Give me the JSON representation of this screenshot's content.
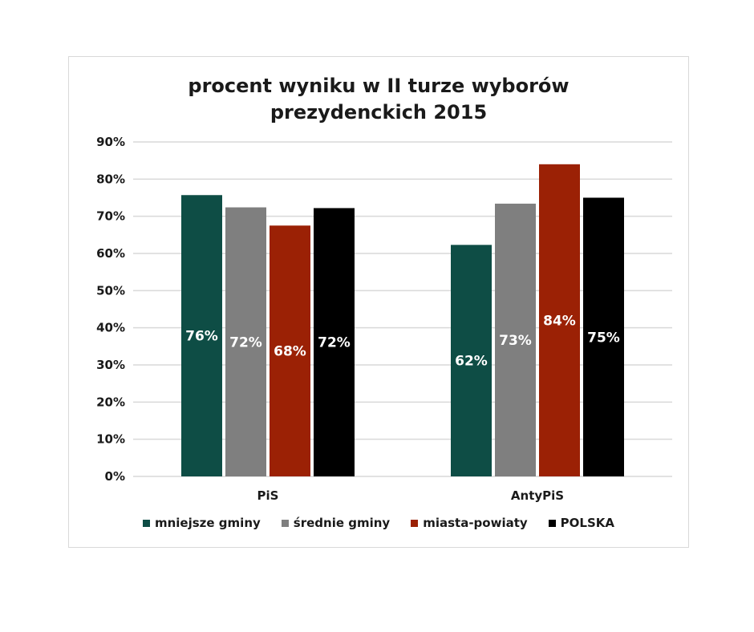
{
  "chart_data": {
    "type": "bar",
    "title": [
      "procent wyniku w II turze wyborów",
      "prezydenckich 2015"
    ],
    "xlabel": "",
    "ylabel": "",
    "ylim": [
      0,
      90
    ],
    "yticks": [
      0,
      10,
      20,
      30,
      40,
      50,
      60,
      70,
      80,
      90
    ],
    "ytick_labels": [
      "0%",
      "10%",
      "20%",
      "30%",
      "40%",
      "50%",
      "60%",
      "70%",
      "80%",
      "90%"
    ],
    "categories": [
      "PiS",
      "AntyPiS"
    ],
    "series": [
      {
        "name": "mniejsze gminy",
        "color": "#0e4d45",
        "values": [
          75.7,
          62.3
        ],
        "labels": [
          "76%",
          "62%"
        ]
      },
      {
        "name": "średnie gminy",
        "color": "#7f7f7f",
        "values": [
          72.4,
          73.4
        ],
        "labels": [
          "72%",
          "73%"
        ]
      },
      {
        "name": "miasta-powiaty",
        "color": "#9b2105",
        "values": [
          67.5,
          84.0
        ],
        "labels": [
          "68%",
          "84%"
        ]
      },
      {
        "name": "POLSKA",
        "color": "#000000",
        "values": [
          72.2,
          75.0
        ],
        "labels": [
          "72%",
          "75%"
        ]
      }
    ],
    "grid": true,
    "legend_position": "bottom",
    "data_label_color": "#ffffff",
    "gridline_color": "#d9d9d9"
  }
}
